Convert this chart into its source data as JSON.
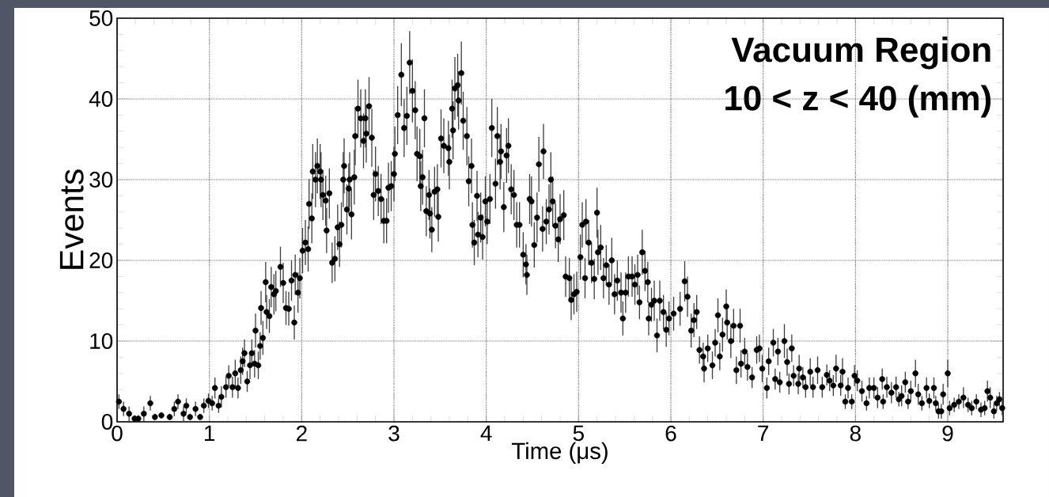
{
  "chart_data": {
    "type": "scatter",
    "xlabel": "Time (μs)",
    "ylabel": "Events",
    "annotations": [
      "Vacuum Region",
      "10 < z < 40 (mm)"
    ],
    "xlim": [
      0,
      9.6
    ],
    "ylim": [
      0,
      50
    ],
    "xticks": [
      0,
      1,
      2,
      3,
      4,
      5,
      6,
      7,
      8,
      9
    ],
    "yticks": [
      0,
      10,
      20,
      30,
      40,
      50
    ],
    "grid": true,
    "marker": "circle",
    "color": "#000000",
    "x": [
      0.02,
      0.07,
      0.13,
      0.19,
      0.23,
      0.29,
      0.36,
      0.41,
      0.48,
      0.57,
      0.62,
      0.66,
      0.72,
      0.75,
      0.79,
      0.85,
      0.9,
      0.94,
      0.99,
      1.03,
      1.06,
      1.1,
      1.13,
      1.18,
      1.21,
      1.25,
      1.28,
      1.31,
      1.34,
      1.36,
      1.38,
      1.41,
      1.44,
      1.46,
      1.49,
      1.5,
      1.53,
      1.55,
      1.56,
      1.58,
      1.61,
      1.62,
      1.65,
      1.67,
      1.7,
      1.72,
      1.77,
      1.8,
      1.83,
      1.86,
      1.89,
      1.92,
      1.93,
      1.96,
      1.98,
      2.01,
      2.04,
      2.07,
      2.08,
      2.11,
      2.12,
      2.15,
      2.17,
      2.2,
      2.21,
      2.23,
      2.26,
      2.27,
      2.3,
      2.33,
      2.36,
      2.39,
      2.41,
      2.43,
      2.45,
      2.46,
      2.49,
      2.51,
      2.52,
      2.54,
      2.57,
      2.58,
      2.61,
      2.64,
      2.67,
      2.69,
      2.7,
      2.73,
      2.76,
      2.78,
      2.8,
      2.83,
      2.86,
      2.89,
      2.92,
      2.94,
      2.97,
      3.0,
      3.01,
      3.04,
      3.08,
      3.11,
      3.14,
      3.17,
      3.2,
      3.23,
      3.25,
      3.28,
      3.29,
      3.31,
      3.33,
      3.35,
      3.38,
      3.39,
      3.41,
      3.44,
      3.47,
      3.48,
      3.51,
      3.54,
      3.59,
      3.6,
      3.63,
      3.64,
      3.66,
      3.69,
      3.7,
      3.73,
      3.75,
      3.79,
      3.81,
      3.84,
      3.85,
      3.87,
      3.9,
      3.91,
      3.94,
      3.96,
      3.99,
      4.01,
      4.04,
      4.06,
      4.1,
      4.12,
      4.15,
      4.16,
      4.19,
      4.22,
      4.24,
      4.27,
      4.3,
      4.33,
      4.36,
      4.4,
      4.43,
      4.44,
      4.47,
      4.49,
      4.52,
      4.55,
      4.57,
      4.61,
      4.62,
      4.65,
      4.68,
      4.7,
      4.72,
      4.75,
      4.78,
      4.8,
      4.84,
      4.86,
      4.9,
      4.92,
      4.95,
      4.98,
      5.02,
      5.04,
      5.07,
      5.08,
      5.11,
      5.14,
      5.17,
      5.2,
      5.21,
      5.24,
      5.27,
      5.3,
      5.33,
      5.36,
      5.39,
      5.42,
      5.46,
      5.48,
      5.51,
      5.54,
      5.58,
      5.61,
      5.64,
      5.66,
      5.69,
      5.72,
      5.75,
      5.76,
      5.79,
      5.82,
      5.85,
      5.88,
      5.92,
      5.95,
      5.98,
      6.03,
      6.1,
      6.15,
      6.18,
      6.22,
      6.25,
      6.28,
      6.31,
      6.35,
      6.36,
      6.4,
      6.45,
      6.48,
      6.51,
      6.53,
      6.56,
      6.6,
      6.61,
      6.65,
      6.68,
      6.71,
      6.75,
      6.76,
      6.8,
      6.83,
      6.88,
      6.93,
      6.96,
      6.99,
      7.04,
      7.06,
      7.11,
      7.13,
      7.16,
      7.18,
      7.23,
      7.26,
      7.28,
      7.31,
      7.33,
      7.38,
      7.39,
      7.43,
      7.46,
      7.51,
      7.54,
      7.59,
      7.64,
      7.69,
      7.72,
      7.76,
      7.79,
      7.84,
      7.86,
      7.89,
      7.92,
      7.96,
      7.99,
      8.02,
      8.07,
      8.12,
      8.15,
      8.2,
      8.24,
      8.29,
      8.3,
      8.34,
      8.39,
      8.44,
      8.47,
      8.5,
      8.54,
      8.57,
      8.6,
      8.65,
      8.68,
      8.72,
      8.77,
      8.8,
      8.85,
      8.87,
      8.9,
      8.93,
      8.95,
      9.0,
      9.02,
      9.07,
      9.12,
      9.17,
      9.22,
      9.26,
      9.31,
      9.36,
      9.4,
      9.43,
      9.46,
      9.5,
      9.53,
      9.56,
      9.59
    ],
    "values": [
      2.5,
      1.6,
      1.0,
      0.4,
      0.4,
      1.0,
      2.3,
      0.6,
      0.8,
      0.6,
      1.6,
      2.5,
      1.0,
      2.0,
      0.6,
      1.6,
      0.6,
      2.0,
      2.6,
      2.3,
      4.2,
      2.0,
      3.1,
      4.3,
      5.7,
      4.3,
      6.0,
      4.2,
      6.4,
      7.5,
      8.5,
      5.0,
      7.0,
      8.5,
      7.2,
      11.3,
      7.0,
      9.4,
      14.1,
      10.4,
      17.3,
      13.6,
      13.1,
      16.7,
      15.8,
      16.2,
      19.2,
      17.2,
      14.1,
      14.0,
      17.5,
      12.3,
      18.2,
      16.0,
      17.8,
      21.2,
      22.2,
      21.4,
      27.0,
      25.2,
      31.0,
      30.0,
      31.7,
      31.0,
      30.0,
      28.1,
      27.4,
      23.7,
      28.3,
      19.7,
      20.2,
      24.1,
      22.0,
      24.4,
      30.0,
      31.7,
      26.3,
      28.9,
      30.0,
      25.7,
      30.3,
      35.4,
      38.8,
      37.6,
      34.8,
      37.6,
      35.7,
      39.1,
      35.2,
      28.1,
      30.7,
      28.6,
      27.6,
      24.9,
      24.9,
      29.0,
      29.2,
      30.7,
      33.2,
      38.0,
      43.0,
      36.4,
      37.9,
      44.5,
      41.0,
      38.6,
      33.2,
      32.9,
      29.2,
      30.3,
      37.6,
      26.1,
      28.1,
      25.8,
      23.8,
      28.5,
      28.8,
      25.4,
      35.1,
      34.2,
      33.9,
      32.2,
      38.8,
      36.1,
      41.3,
      41.7,
      39.8,
      43.2,
      37.3,
      35.4,
      29.8,
      31.7,
      24.4,
      22.2,
      28.0,
      23.2,
      25.3,
      22.9,
      27.3,
      24.8,
      27.6,
      36.4,
      29.5,
      35.4,
      32.2,
      33.5,
      26.6,
      33.0,
      34.2,
      28.8,
      28.1,
      24.4,
      24.4,
      20.7,
      19.5,
      18.2,
      27.6,
      27.3,
      21.9,
      25.3,
      31.9,
      23.9,
      33.5,
      24.8,
      26.3,
      30.0,
      27.3,
      24.3,
      22.6,
      25.1,
      25.6,
      18.0,
      17.8,
      15.1,
      15.8,
      16.1,
      20.4,
      24.4,
      17.8,
      24.8,
      22.2,
      19.7,
      17.7,
      25.9,
      21.0,
      21.6,
      17.8,
      19.4,
      17.0,
      20.0,
      15.8,
      17.5,
      16.0,
      12.8,
      16.0,
      18.0,
      18.0,
      17.0,
      18.2,
      14.8,
      21.0,
      18.7,
      17.3,
      12.8,
      14.5,
      15.0,
      10.7,
      15.0,
      13.6,
      11.4,
      12.8,
      13.4,
      14.0,
      17.4,
      15.5,
      11.3,
      12.6,
      13.6,
      8.9,
      8.1,
      6.6,
      9.1,
      7.0,
      9.8,
      13.2,
      8.1,
      10.8,
      14.3,
      12.3,
      10.0,
      11.9,
      6.4,
      11.9,
      7.2,
      8.7,
      6.8,
      5.5,
      8.9,
      9.1,
      6.6,
      4.2,
      7.5,
      9.8,
      5.3,
      8.7,
      4.9,
      10.0,
      7.4,
      4.7,
      9.1,
      5.7,
      4.7,
      6.6,
      5.5,
      4.3,
      6.2,
      4.3,
      6.4,
      4.3,
      5.8,
      5.1,
      4.5,
      6.6,
      4.5,
      6.2,
      2.5,
      4.2,
      2.5,
      5.7,
      5.1,
      3.8,
      2.3,
      4.2,
      4.2,
      3.0,
      5.3,
      2.5,
      4.3,
      3.6,
      4.3,
      2.8,
      3.2,
      4.9,
      2.5,
      3.8,
      6.0,
      3.4,
      2.3,
      4.2,
      2.6,
      4.2,
      2.3,
      1.3,
      1.3,
      3.4,
      6.0,
      1.7,
      2.1,
      2.5,
      3.0,
      2.1,
      1.7,
      2.5,
      1.5,
      1.7,
      3.8,
      3.0,
      1.3,
      2.3,
      2.8,
      1.7
    ],
    "errors": [
      0.9,
      0.9,
      0.9,
      0.4,
      0.4,
      0.9,
      0.9,
      0.4,
      0.4,
      0.4,
      0.9,
      0.9,
      0.9,
      0.9,
      0.4,
      0.9,
      0.4,
      0.9,
      0.9,
      0.9,
      1.3,
      0.9,
      1.3,
      1.3,
      1.3,
      1.3,
      1.7,
      1.3,
      1.7,
      1.7,
      1.7,
      1.3,
      1.7,
      1.7,
      1.7,
      2.1,
      1.7,
      1.7,
      2.1,
      2.1,
      2.5,
      2.1,
      2.1,
      2.5,
      2.5,
      2.5,
      2.5,
      2.5,
      2.1,
      2.1,
      2.5,
      2.1,
      2.5,
      2.5,
      2.5,
      2.8,
      2.8,
      2.8,
      3.1,
      3.1,
      3.4,
      3.4,
      3.4,
      3.4,
      3.4,
      3.1,
      3.1,
      2.8,
      3.1,
      2.5,
      2.8,
      2.8,
      2.8,
      2.8,
      3.4,
      3.4,
      3.1,
      3.1,
      3.4,
      3.1,
      3.4,
      3.6,
      3.6,
      3.6,
      3.4,
      3.6,
      3.6,
      3.6,
      3.6,
      3.1,
      3.4,
      3.1,
      3.1,
      2.8,
      2.8,
      3.1,
      3.1,
      3.4,
      3.4,
      3.6,
      3.9,
      3.6,
      3.6,
      3.9,
      3.9,
      3.6,
      3.4,
      3.4,
      3.1,
      3.4,
      3.6,
      3.1,
      3.1,
      3.1,
      2.8,
      3.1,
      3.1,
      3.1,
      3.6,
      3.4,
      3.4,
      3.4,
      3.6,
      3.6,
      3.9,
      3.9,
      3.6,
      3.9,
      3.6,
      3.6,
      3.1,
      3.4,
      2.8,
      2.8,
      3.1,
      2.8,
      3.1,
      2.8,
      3.1,
      2.8,
      3.1,
      3.6,
      3.1,
      3.6,
      3.4,
      3.4,
      3.1,
      3.4,
      3.4,
      3.1,
      3.1,
      2.8,
      2.8,
      2.8,
      2.5,
      2.5,
      3.1,
      3.1,
      2.8,
      3.1,
      3.4,
      2.8,
      3.4,
      2.8,
      3.1,
      3.4,
      3.1,
      2.8,
      2.8,
      3.1,
      3.1,
      2.5,
      2.5,
      2.5,
      2.5,
      2.5,
      2.8,
      2.8,
      2.5,
      2.8,
      2.8,
      2.5,
      2.5,
      3.1,
      2.8,
      2.8,
      2.5,
      2.5,
      2.5,
      2.8,
      2.5,
      2.5,
      2.5,
      2.1,
      2.5,
      2.5,
      2.5,
      2.5,
      2.5,
      2.1,
      2.8,
      2.5,
      2.5,
      2.1,
      2.1,
      2.5,
      2.1,
      2.5,
      2.1,
      2.1,
      2.1,
      2.1,
      2.1,
      2.5,
      2.5,
      2.1,
      2.1,
      2.1,
      1.7,
      1.7,
      1.7,
      1.7,
      1.7,
      1.7,
      2.1,
      1.7,
      2.1,
      2.1,
      2.1,
      2.1,
      2.1,
      1.7,
      2.1,
      1.7,
      1.7,
      1.7,
      1.3,
      1.7,
      1.7,
      1.7,
      1.3,
      1.7,
      1.7,
      1.3,
      1.7,
      1.3,
      2.1,
      1.7,
      1.3,
      1.7,
      1.3,
      1.3,
      1.7,
      1.3,
      1.3,
      1.7,
      1.3,
      1.7,
      1.3,
      1.3,
      1.3,
      1.3,
      1.7,
      1.3,
      1.7,
      0.9,
      1.3,
      0.9,
      1.3,
      1.3,
      1.3,
      0.9,
      1.3,
      1.3,
      1.3,
      1.3,
      0.9,
      1.3,
      1.3,
      1.3,
      0.9,
      1.3,
      1.3,
      0.9,
      1.3,
      1.7,
      1.3,
      0.9,
      1.3,
      0.9,
      1.3,
      0.9,
      0.9,
      0.9,
      1.3,
      1.7,
      0.9,
      0.9,
      0.9,
      1.3,
      0.9,
      0.9,
      0.9,
      0.9,
      0.9,
      1.3,
      1.3,
      0.9,
      0.9,
      0.9,
      0.9
    ]
  }
}
